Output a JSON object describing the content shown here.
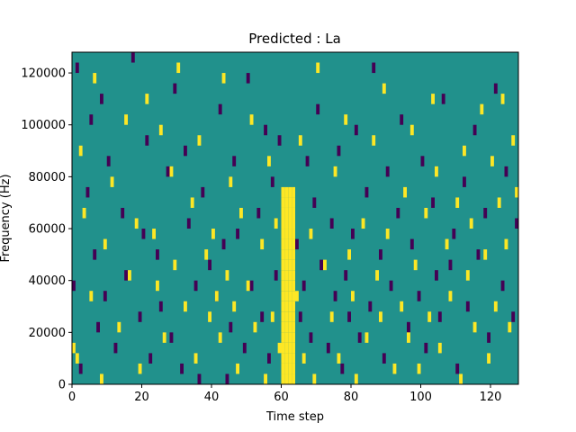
{
  "chart_data": {
    "type": "heatmap",
    "title": "Predicted : La",
    "xlabel": "Time step",
    "ylabel": "Frequency (Hz)",
    "xlim": [
      0,
      128
    ],
    "ylim": [
      0,
      128000
    ],
    "xticks": [
      "0",
      "20",
      "40",
      "60",
      "80",
      "100",
      "120"
    ],
    "yticks": [
      "0",
      "20000",
      "40000",
      "60000",
      "80000",
      "100000",
      "120000"
    ],
    "grid": false,
    "colormap": "viridis",
    "colors": {
      "background": "#21918c",
      "high": "#fde725",
      "low": "#440154"
    },
    "description_cells": {
      "cell_height_hz": 4000,
      "high_band": {
        "x_from": 60,
        "x_to": 63,
        "y_from": 4000,
        "y_to": 76000
      },
      "low_cells": [
        [
          0,
          40000
        ],
        [
          1,
          124000
        ],
        [
          2,
          8000
        ],
        [
          4,
          76000
        ],
        [
          5,
          104000
        ],
        [
          6,
          52000
        ],
        [
          7,
          24000
        ],
        [
          8,
          112000
        ],
        [
          9,
          36000
        ],
        [
          10,
          88000
        ],
        [
          12,
          16000
        ],
        [
          14,
          68000
        ],
        [
          15,
          44000
        ],
        [
          17,
          128000
        ],
        [
          19,
          28000
        ],
        [
          20,
          60000
        ],
        [
          21,
          96000
        ],
        [
          22,
          12000
        ],
        [
          24,
          52000
        ],
        [
          25,
          32000
        ],
        [
          27,
          84000
        ],
        [
          28,
          20000
        ],
        [
          29,
          116000
        ],
        [
          31,
          8000
        ],
        [
          32,
          92000
        ],
        [
          33,
          64000
        ],
        [
          35,
          40000
        ],
        [
          36,
          4000
        ],
        [
          37,
          76000
        ],
        [
          39,
          48000
        ],
        [
          41,
          36000
        ],
        [
          42,
          108000
        ],
        [
          43,
          56000
        ],
        [
          44,
          4000
        ],
        [
          45,
          24000
        ],
        [
          46,
          88000
        ],
        [
          47,
          60000
        ],
        [
          49,
          16000
        ],
        [
          50,
          120000
        ],
        [
          51,
          40000
        ],
        [
          53,
          68000
        ],
        [
          54,
          28000
        ],
        [
          55,
          100000
        ],
        [
          56,
          12000
        ],
        [
          57,
          80000
        ],
        [
          58,
          44000
        ],
        [
          59,
          96000
        ],
        [
          64,
          56000
        ],
        [
          65,
          28000
        ],
        [
          66,
          40000
        ],
        [
          67,
          88000
        ],
        [
          68,
          20000
        ],
        [
          69,
          72000
        ],
        [
          70,
          108000
        ],
        [
          71,
          48000
        ],
        [
          73,
          16000
        ],
        [
          74,
          64000
        ],
        [
          75,
          36000
        ],
        [
          76,
          92000
        ],
        [
          77,
          8000
        ],
        [
          78,
          44000
        ],
        [
          79,
          28000
        ],
        [
          80,
          60000
        ],
        [
          81,
          100000
        ],
        [
          82,
          20000
        ],
        [
          84,
          76000
        ],
        [
          85,
          32000
        ],
        [
          86,
          124000
        ],
        [
          88,
          52000
        ],
        [
          89,
          12000
        ],
        [
          90,
          84000
        ],
        [
          91,
          40000
        ],
        [
          93,
          68000
        ],
        [
          94,
          104000
        ],
        [
          96,
          24000
        ],
        [
          97,
          56000
        ],
        [
          99,
          36000
        ],
        [
          100,
          88000
        ],
        [
          101,
          16000
        ],
        [
          103,
          72000
        ],
        [
          104,
          44000
        ],
        [
          105,
          28000
        ],
        [
          106,
          112000
        ],
        [
          108,
          48000
        ],
        [
          109,
          60000
        ],
        [
          110,
          8000
        ],
        [
          112,
          80000
        ],
        [
          113,
          32000
        ],
        [
          115,
          100000
        ],
        [
          116,
          52000
        ],
        [
          118,
          68000
        ],
        [
          119,
          20000
        ],
        [
          121,
          116000
        ],
        [
          123,
          40000
        ],
        [
          124,
          84000
        ],
        [
          126,
          28000
        ],
        [
          127,
          64000
        ]
      ],
      "high_cells": [
        [
          0,
          16000
        ],
        [
          1,
          12000
        ],
        [
          2,
          92000
        ],
        [
          3,
          68000
        ],
        [
          5,
          36000
        ],
        [
          6,
          120000
        ],
        [
          8,
          4000
        ],
        [
          9,
          56000
        ],
        [
          11,
          80000
        ],
        [
          13,
          24000
        ],
        [
          15,
          104000
        ],
        [
          16,
          44000
        ],
        [
          18,
          64000
        ],
        [
          19,
          8000
        ],
        [
          21,
          112000
        ],
        [
          23,
          60000
        ],
        [
          24,
          40000
        ],
        [
          25,
          100000
        ],
        [
          26,
          20000
        ],
        [
          28,
          84000
        ],
        [
          29,
          48000
        ],
        [
          30,
          124000
        ],
        [
          32,
          32000
        ],
        [
          34,
          72000
        ],
        [
          35,
          12000
        ],
        [
          36,
          96000
        ],
        [
          38,
          52000
        ],
        [
          39,
          28000
        ],
        [
          40,
          60000
        ],
        [
          41,
          36000
        ],
        [
          42,
          20000
        ],
        [
          43,
          120000
        ],
        [
          44,
          44000
        ],
        [
          45,
          80000
        ],
        [
          46,
          32000
        ],
        [
          47,
          8000
        ],
        [
          48,
          68000
        ],
        [
          50,
          40000
        ],
        [
          51,
          104000
        ],
        [
          52,
          24000
        ],
        [
          54,
          56000
        ],
        [
          55,
          4000
        ],
        [
          56,
          88000
        ],
        [
          57,
          28000
        ],
        [
          58,
          64000
        ],
        [
          59,
          16000
        ],
        [
          64,
          36000
        ],
        [
          65,
          96000
        ],
        [
          66,
          12000
        ],
        [
          68,
          60000
        ],
        [
          69,
          4000
        ],
        [
          70,
          124000
        ],
        [
          72,
          48000
        ],
        [
          74,
          28000
        ],
        [
          75,
          84000
        ],
        [
          76,
          12000
        ],
        [
          78,
          104000
        ],
        [
          79,
          52000
        ],
        [
          80,
          36000
        ],
        [
          81,
          4000
        ],
        [
          83,
          64000
        ],
        [
          84,
          20000
        ],
        [
          86,
          96000
        ],
        [
          87,
          44000
        ],
        [
          88,
          28000
        ],
        [
          89,
          116000
        ],
        [
          90,
          60000
        ],
        [
          92,
          8000
        ],
        [
          94,
          32000
        ],
        [
          95,
          76000
        ],
        [
          96,
          20000
        ],
        [
          97,
          100000
        ],
        [
          98,
          48000
        ],
        [
          99,
          8000
        ],
        [
          101,
          68000
        ],
        [
          102,
          28000
        ],
        [
          103,
          112000
        ],
        [
          104,
          84000
        ],
        [
          105,
          16000
        ],
        [
          107,
          56000
        ],
        [
          108,
          36000
        ],
        [
          110,
          72000
        ],
        [
          111,
          4000
        ],
        [
          112,
          92000
        ],
        [
          113,
          44000
        ],
        [
          114,
          64000
        ],
        [
          115,
          24000
        ],
        [
          117,
          108000
        ],
        [
          118,
          52000
        ],
        [
          119,
          12000
        ],
        [
          120,
          88000
        ],
        [
          121,
          32000
        ],
        [
          122,
          72000
        ],
        [
          123,
          112000
        ],
        [
          124,
          56000
        ],
        [
          125,
          24000
        ],
        [
          126,
          96000
        ],
        [
          127,
          76000
        ]
      ]
    }
  }
}
